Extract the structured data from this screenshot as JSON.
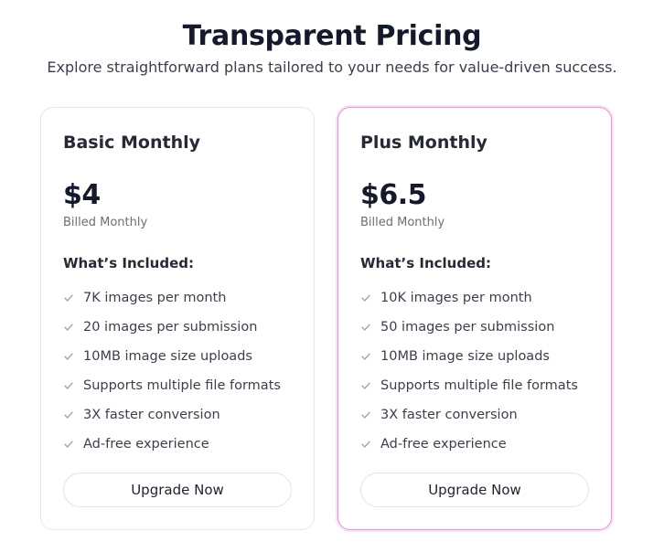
{
  "header": {
    "title": "Transparent Pricing",
    "subtitle": "Explore straightforward plans tailored to your needs for value-driven success."
  },
  "plans": [
    {
      "name": "Basic Monthly",
      "price": "$4",
      "billing": "Billed Monthly",
      "included_label": "What’s Included:",
      "features": [
        "7K images per month",
        "20 images per submission",
        "10MB image size uploads",
        "Supports multiple file formats",
        "3X faster conversion",
        "Ad-free experience"
      ],
      "button_label": "Upgrade Now",
      "highlighted": false
    },
    {
      "name": "Plus Monthly",
      "price": "$6.5",
      "billing": "Billed Monthly",
      "included_label": "What’s Included:",
      "features": [
        "10K images per month",
        "50 images per submission",
        "10MB image size uploads",
        "Supports multiple file formats",
        "3X faster conversion",
        "Ad-free experience"
      ],
      "button_label": "Upgrade Now",
      "highlighted": true
    }
  ],
  "colors": {
    "highlight_border": "#f28fd6",
    "check_icon": "#a0a4ad"
  },
  "icons": {
    "feature_check": "check-icon"
  }
}
